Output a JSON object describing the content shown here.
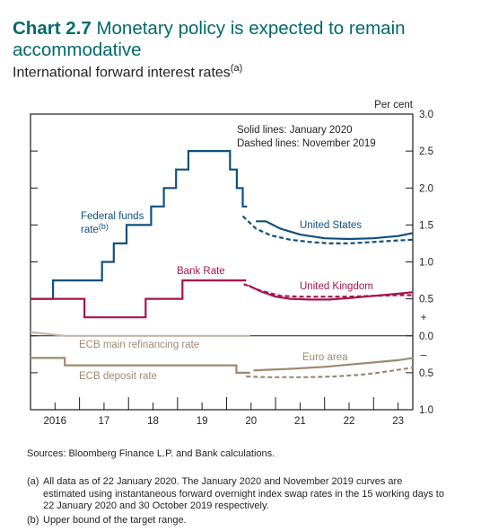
{
  "header": {
    "chart_number": "Chart 2.7",
    "title_part1": "Monetary policy is expected to remain",
    "title_part2": "accommodative",
    "subtitle": "International forward interest rates",
    "subtitle_note": "(a)"
  },
  "colors": {
    "us": "#10507e",
    "uk": "#a6154f",
    "ea_main": "#c5b8aa",
    "ea_deposit": "#9e8a6f",
    "title": "#006a6b",
    "axis": "#1a1a1a"
  },
  "footer": {
    "sources": "Sources: Bloomberg Finance L.P. and Bank calculations.",
    "note_a_label": "(a)",
    "note_a_line1": "All data as of 22 January 2020. The January 2020 and November 2019 curves are",
    "note_a_line2": "estimated using instantaneous forward overnight index swap rates in the 15 working days to",
    "note_a_line3": "22 January 2020 and 30 October 2019 respectively.",
    "note_b_label": "(b)",
    "note_b_line1": "Upper bound of the target range."
  },
  "chart_data": {
    "type": "line",
    "ylabel": "Per cent",
    "ylim": [
      -1.0,
      3.0
    ],
    "yticks": [
      {
        "value": 3.0,
        "label": "3.0"
      },
      {
        "value": 2.5,
        "label": "2.5"
      },
      {
        "value": 2.0,
        "label": "2.0"
      },
      {
        "value": 1.5,
        "label": "1.5"
      },
      {
        "value": 1.0,
        "label": "1.0"
      },
      {
        "value": 0.5,
        "label": "0.5"
      },
      {
        "value": 0.0,
        "label": "0.0"
      },
      {
        "value": -0.5,
        "label": "0.5"
      },
      {
        "value": -1.0,
        "label": "1.0"
      }
    ],
    "sign_plus": "+",
    "sign_minus": "–",
    "xlim": [
      2015.5,
      2023.3
    ],
    "xticks": [
      {
        "value": 2016,
        "label": "2016"
      },
      {
        "value": 2017,
        "label": "17"
      },
      {
        "value": 2018,
        "label": "18"
      },
      {
        "value": 2019,
        "label": "19"
      },
      {
        "value": 2020,
        "label": "20"
      },
      {
        "value": 2021,
        "label": "21"
      },
      {
        "value": 2022,
        "label": "22"
      },
      {
        "value": 2023,
        "label": "23"
      }
    ],
    "legend_solid": "Solid lines: January 2020",
    "legend_dashed": "Dashed lines: November 2019",
    "labels": {
      "us": "United States",
      "uk": "United Kingdom",
      "ea": "Euro area",
      "fed_line1": "Federal funds",
      "fed_line2": "rate",
      "fed_note": "(b)",
      "bank_rate": "Bank Rate",
      "ecb_main": "ECB main refinancing rate",
      "ecb_deposit": "ECB deposit rate"
    },
    "series": [
      {
        "key": "fed_funds",
        "style": "solid",
        "color_key": "us",
        "step": true,
        "x": [
          2015.5,
          2015.96,
          2016.96,
          2017.2,
          2017.46,
          2017.96,
          2018.22,
          2018.47,
          2018.72,
          2018.98,
          2019.57,
          2019.71,
          2019.83,
          2019.92
        ],
        "y": [
          0.5,
          0.75,
          1.0,
          1.25,
          1.5,
          1.75,
          2.0,
          2.25,
          2.5,
          2.5,
          2.25,
          2.0,
          1.75,
          1.75
        ]
      },
      {
        "key": "us_jan",
        "style": "solid",
        "color_key": "us",
        "x": [
          2020.1,
          2020.3,
          2020.6,
          2021.0,
          2021.5,
          2022.0,
          2022.5,
          2023.0,
          2023.3
        ],
        "y": [
          1.55,
          1.55,
          1.45,
          1.37,
          1.32,
          1.31,
          1.32,
          1.35,
          1.39
        ]
      },
      {
        "key": "us_nov",
        "style": "dashed",
        "color_key": "us",
        "x": [
          2019.83,
          2020.1,
          2020.4,
          2020.8,
          2021.2,
          2021.6,
          2022.0,
          2022.5,
          2023.0,
          2023.3
        ],
        "y": [
          1.62,
          1.45,
          1.36,
          1.3,
          1.27,
          1.25,
          1.25,
          1.27,
          1.29,
          1.3
        ]
      },
      {
        "key": "bank_rate",
        "style": "solid",
        "color_key": "uk",
        "step": true,
        "x": [
          2015.5,
          2016.6,
          2017.85,
          2018.6,
          2019.9
        ],
        "y": [
          0.5,
          0.25,
          0.5,
          0.75,
          0.75
        ]
      },
      {
        "key": "uk_jan",
        "style": "solid",
        "color_key": "uk",
        "x": [
          2019.95,
          2020.2,
          2020.5,
          2020.8,
          2021.2,
          2021.6,
          2022.0,
          2022.5,
          2023.0,
          2023.3
        ],
        "y": [
          0.68,
          0.6,
          0.53,
          0.5,
          0.49,
          0.49,
          0.51,
          0.54,
          0.57,
          0.59
        ]
      },
      {
        "key": "uk_nov",
        "style": "dashed",
        "color_key": "uk",
        "x": [
          2019.85,
          2020.2,
          2020.6,
          2021.0,
          2021.5,
          2022.0,
          2022.5,
          2023.0,
          2023.3
        ],
        "y": [
          0.7,
          0.61,
          0.54,
          0.53,
          0.53,
          0.53,
          0.54,
          0.55,
          0.55
        ]
      },
      {
        "key": "ecb_main",
        "style": "solid",
        "color_key": "ea_main",
        "x": [
          2015.5,
          2016.2,
          2019.98
        ],
        "y": [
          0.05,
          0.0,
          0.0
        ]
      },
      {
        "key": "ecb_deposit",
        "style": "solid",
        "color_key": "ea_deposit",
        "step": true,
        "x": [
          2015.5,
          2016.2,
          2019.7,
          2019.98
        ],
        "y": [
          -0.3,
          -0.4,
          -0.5,
          -0.5
        ]
      },
      {
        "key": "ea_jan",
        "style": "solid",
        "color_key": "ea_deposit",
        "x": [
          2020.05,
          2020.3,
          2020.7,
          2021.0,
          2021.5,
          2022.0,
          2022.5,
          2023.0,
          2023.3
        ],
        "y": [
          -0.47,
          -0.46,
          -0.45,
          -0.44,
          -0.42,
          -0.39,
          -0.36,
          -0.33,
          -0.3
        ]
      },
      {
        "key": "ea_nov",
        "style": "dashed",
        "color_key": "ea_deposit",
        "x": [
          2019.9,
          2020.3,
          2020.7,
          2021.2,
          2021.7,
          2022.2,
          2022.6,
          2023.0,
          2023.3
        ],
        "y": [
          -0.55,
          -0.56,
          -0.56,
          -0.56,
          -0.55,
          -0.53,
          -0.5,
          -0.46,
          -0.43
        ]
      }
    ]
  }
}
